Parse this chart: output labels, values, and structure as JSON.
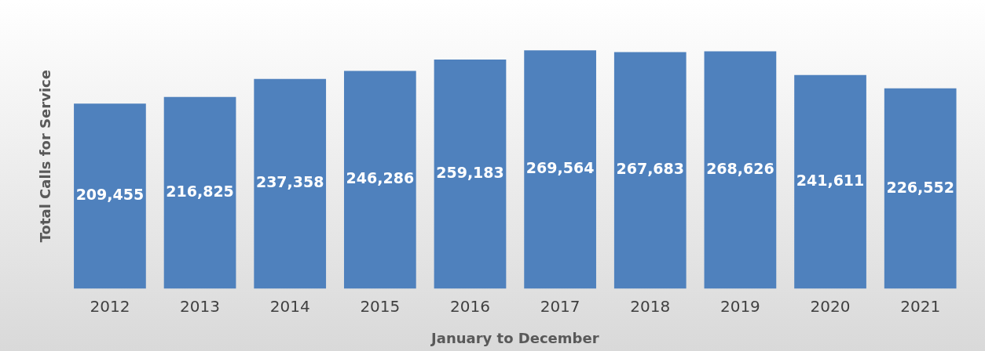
{
  "chart_data": {
    "type": "bar",
    "xlabel": "January to December",
    "ylabel": "Total Calls for Service",
    "categories": [
      "2012",
      "2013",
      "2014",
      "2015",
      "2016",
      "2017",
      "2018",
      "2019",
      "2020",
      "2021"
    ],
    "values": [
      209455,
      216825,
      237358,
      246286,
      259183,
      269564,
      267683,
      268626,
      241611,
      226552
    ],
    "value_labels": [
      "209,455",
      "216,825",
      "237,358",
      "246,286",
      "259,183",
      "269,564",
      "267,683",
      "268,626",
      "241,611",
      "226,552"
    ],
    "color": "#4f81bd",
    "grid": false,
    "legend": false
  }
}
